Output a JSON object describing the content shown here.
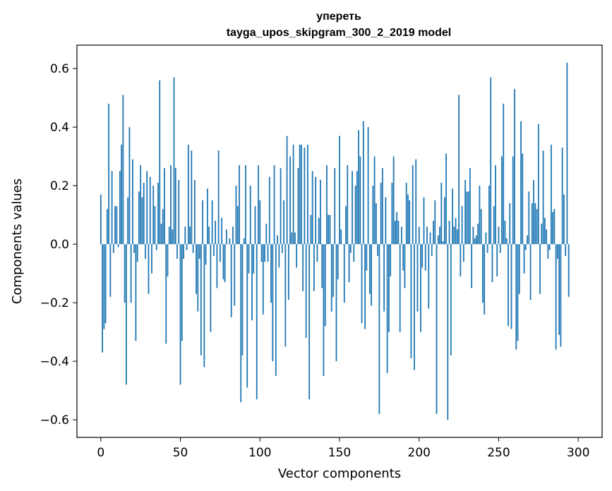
{
  "chart_data": {
    "type": "bar",
    "title": "уперетьtayga_upos_skipgram_300_2_2019 model",
    "title_lines": [
      "упереть",
      "tayga_upos_skipgram_300_2_2019 model"
    ],
    "xlabel": "Vector components",
    "ylabel": "Components values",
    "xlim": [
      -15,
      315
    ],
    "ylim": [
      -0.66,
      0.68
    ],
    "xticks": [
      0,
      50,
      100,
      150,
      200,
      250,
      300
    ],
    "yticks": [
      -0.6,
      -0.4,
      -0.2,
      0.0,
      0.2,
      0.4,
      0.6
    ],
    "ytick_labels": [
      "−0.6",
      "−0.4",
      "−0.2",
      "0.0",
      "0.2",
      "0.4",
      "0.6"
    ],
    "bar_color": "#1f77b4",
    "x": "0..299",
    "values": [
      0.17,
      -0.37,
      -0.29,
      -0.27,
      0.12,
      0.48,
      -0.18,
      0.25,
      -0.03,
      0.13,
      0.13,
      -0.01,
      0.25,
      0.34,
      0.51,
      -0.2,
      -0.48,
      0.16,
      0.4,
      -0.2,
      0.29,
      -0.03,
      -0.33,
      -0.06,
      0.18,
      0.27,
      0.16,
      0.21,
      -0.05,
      0.25,
      -0.17,
      0.23,
      -0.1,
      0.2,
      0.13,
      -0.02,
      0.21,
      0.56,
      0.07,
      0.12,
      0.26,
      -0.34,
      -0.11,
      0.06,
      0.27,
      0.05,
      0.57,
      0.26,
      -0.05,
      0.22,
      -0.48,
      -0.33,
      -0.05,
      0.06,
      -0.02,
      0.34,
      0.06,
      0.32,
      -0.03,
      0.22,
      -0.17,
      -0.23,
      -0.05,
      -0.38,
      0.15,
      -0.42,
      -0.07,
      0.19,
      0.06,
      -0.3,
      0.15,
      -0.04,
      0.08,
      -0.15,
      0.32,
      -0.06,
      0.09,
      -0.12,
      -0.13,
      0.05,
      0.0,
      0.02,
      -0.25,
      0.06,
      -0.21,
      0.2,
      0.13,
      0.27,
      -0.54,
      -0.38,
      0.02,
      0.27,
      -0.49,
      -0.1,
      0.2,
      -0.26,
      -0.1,
      0.13,
      -0.53,
      0.27,
      0.15,
      -0.06,
      -0.24,
      -0.06,
      0.07,
      -0.06,
      0.23,
      -0.2,
      -0.4,
      0.27,
      -0.45,
      0.03,
      -0.08,
      0.26,
      -0.03,
      0.15,
      -0.35,
      0.37,
      -0.19,
      0.3,
      0.04,
      0.34,
      0.04,
      -0.08,
      0.26,
      0.34,
      0.34,
      -0.16,
      0.33,
      -0.32,
      0.34,
      -0.53,
      0.1,
      0.25,
      -0.16,
      0.23,
      -0.06,
      0.09,
      0.22,
      -0.15,
      -0.45,
      -0.28,
      0.27,
      0.1,
      0.1,
      -0.23,
      -0.18,
      0.26,
      -0.4,
      -0.12,
      0.37,
      0.05,
      0.0,
      -0.2,
      0.13,
      0.27,
      -0.13,
      -0.03,
      0.25,
      -0.06,
      0.2,
      0.25,
      0.39,
      0.3,
      -0.27,
      0.42,
      -0.29,
      -0.09,
      0.4,
      -0.17,
      -0.21,
      0.2,
      0.3,
      0.14,
      -0.04,
      -0.58,
      0.21,
      0.26,
      -0.23,
      0.16,
      -0.44,
      -0.3,
      -0.11,
      0.21,
      0.3,
      0.08,
      0.11,
      0.08,
      -0.3,
      0.06,
      -0.09,
      -0.15,
      0.21,
      0.17,
      0.15,
      -0.39,
      0.27,
      -0.43,
      0.29,
      -0.23,
      0.06,
      -0.3,
      -0.08,
      0.16,
      -0.09,
      0.06,
      -0.22,
      0.04,
      -0.04,
      0.08,
      0.15,
      -0.58,
      0.03,
      0.06,
      0.21,
      0.01,
      0.16,
      0.31,
      -0.6,
      0.08,
      -0.38,
      0.19,
      0.06,
      0.09,
      0.05,
      0.51,
      -0.11,
      0.13,
      -0.06,
      0.22,
      0.18,
      0.18,
      0.26,
      -0.15,
      0.06,
      0.02,
      0.03,
      0.07,
      0.2,
      0.12,
      -0.2,
      -0.24,
      0.04,
      -0.03,
      0.2,
      0.57,
      -0.13,
      0.13,
      0.27,
      -0.11,
      0.06,
      -0.03,
      0.3,
      0.48,
      0.08,
      0.02,
      -0.28,
      0.14,
      -0.29,
      0.3,
      0.53,
      -0.36,
      -0.33,
      -0.17,
      0.42,
      0.31,
      -0.1,
      -0.02,
      0.03,
      0.18,
      -0.19,
      0.14,
      0.22,
      0.14,
      0.12,
      0.41,
      -0.17,
      0.07,
      0.32,
      0.09,
      0.05,
      -0.05,
      -0.02,
      0.34,
      0.11,
      0.12,
      -0.36,
      -0.05,
      -0.31,
      -0.35,
      0.33,
      0.17,
      -0.04,
      0.62,
      -0.18
    ]
  }
}
